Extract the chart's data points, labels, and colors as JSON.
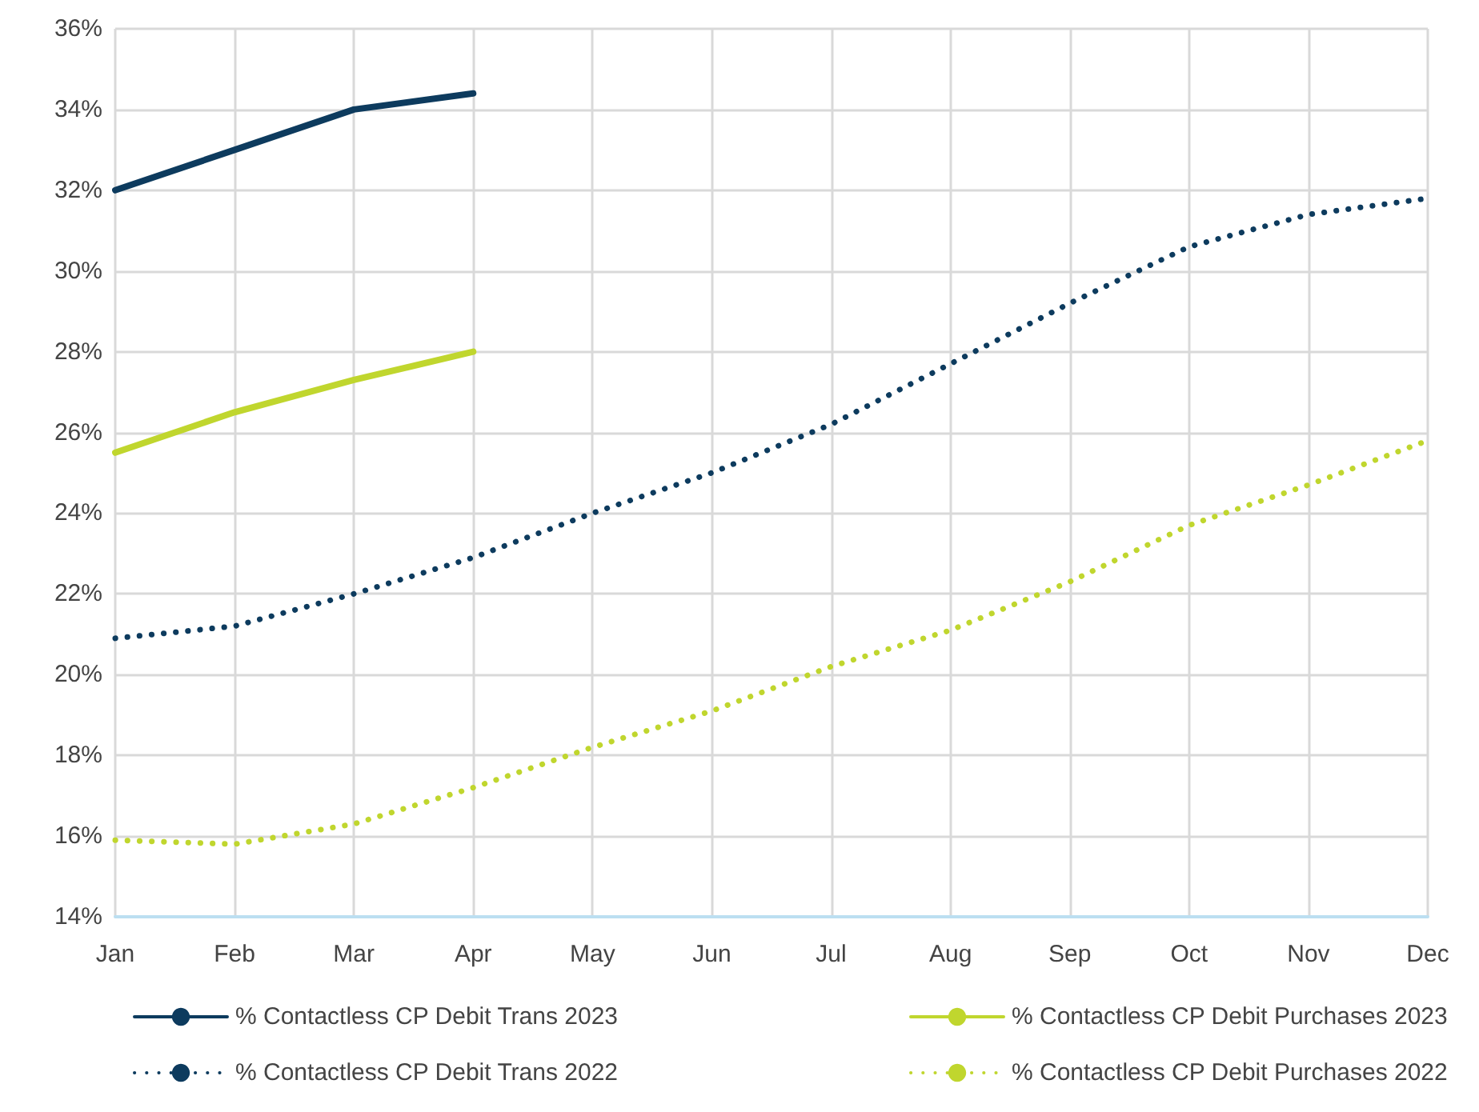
{
  "chart_data": {
    "type": "line",
    "categories": [
      "Jan",
      "Feb",
      "Mar",
      "Apr",
      "May",
      "Jun",
      "Jul",
      "Aug",
      "Sep",
      "Oct",
      "Nov",
      "Dec"
    ],
    "series": [
      {
        "name": "% Contactless CP Debit Trans 2023",
        "color": "#0d3b5e",
        "line_style": "solid",
        "values": [
          32.0,
          33.0,
          34.0,
          34.4,
          null,
          null,
          null,
          null,
          null,
          null,
          null,
          null
        ]
      },
      {
        "name": "% Contactless CP Debit Purchases 2023",
        "color": "#c0d62e",
        "line_style": "solid",
        "values": [
          25.5,
          26.5,
          27.3,
          28.0,
          null,
          null,
          null,
          null,
          null,
          null,
          null,
          null
        ]
      },
      {
        "name": "% Contactless CP Debit Trans 2022",
        "color": "#0d3b5e",
        "line_style": "dotted",
        "values": [
          20.9,
          21.2,
          22.0,
          22.9,
          24.0,
          25.0,
          26.2,
          27.7,
          29.2,
          30.6,
          31.4,
          31.8
        ]
      },
      {
        "name": "% Contactless CP Debit Purchases 2022",
        "color": "#c0d62e",
        "line_style": "dotted",
        "values": [
          15.9,
          15.8,
          16.3,
          17.2,
          18.2,
          19.1,
          20.2,
          21.1,
          22.3,
          23.7,
          24.7,
          25.8
        ]
      }
    ],
    "ylim": [
      14,
      36
    ],
    "yticks": [
      {
        "value": 14,
        "label": "14%"
      },
      {
        "value": 16,
        "label": "16%"
      },
      {
        "value": 18,
        "label": "18%"
      },
      {
        "value": 20,
        "label": "20%"
      },
      {
        "value": 22,
        "label": "22%"
      },
      {
        "value": 24,
        "label": "24%"
      },
      {
        "value": 26,
        "label": "26%"
      },
      {
        "value": 28,
        "label": "28%"
      },
      {
        "value": 30,
        "label": "30%"
      },
      {
        "value": 32,
        "label": "32%"
      },
      {
        "value": 34,
        "label": "34%"
      },
      {
        "value": 36,
        "label": "36%"
      }
    ],
    "grid": true,
    "legend": "bottom",
    "marker": "none"
  }
}
